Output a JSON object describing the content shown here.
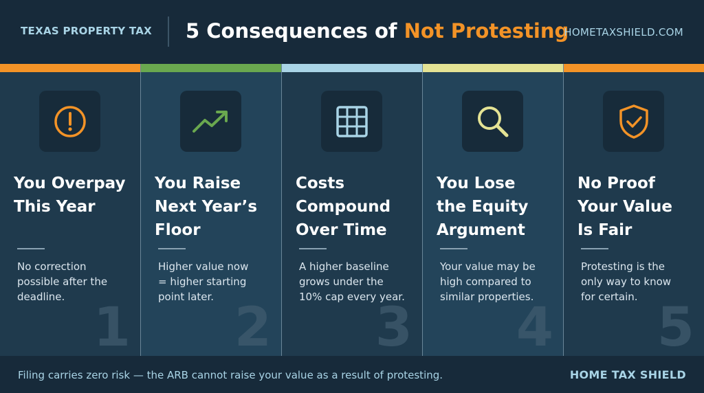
{
  "header": {
    "left_label": "TEXAS PROPERTY TAX",
    "title_main": "5 Consequences of ",
    "title_accent": "Not Protesting",
    "site": "HOMETAXSHIELD.COM"
  },
  "colors": {
    "accent_orange": "#f39327",
    "green": "#6aa84f",
    "light_blue": "#a9d4e6",
    "yellow": "#e4e394",
    "background": "#1b3142"
  },
  "columns": [
    {
      "icon": "exclamation-circle-icon",
      "title_lines": [
        "You Overpay",
        "This Year"
      ],
      "desc_lines": [
        "No correction",
        "possible after the",
        "deadline."
      ],
      "number": "1"
    },
    {
      "icon": "trending-up-icon",
      "title_lines": [
        "You Raise",
        "Next Year’s",
        "Floor"
      ],
      "desc_lines": [
        "Higher value now",
        "= higher starting",
        "point later."
      ],
      "number": "2"
    },
    {
      "icon": "grid-table-icon",
      "title_lines": [
        "Costs",
        "Compound",
        "Over Time"
      ],
      "desc_lines": [
        "A higher baseline",
        "grows under the",
        "10% cap every year."
      ],
      "number": "3"
    },
    {
      "icon": "magnifier-icon",
      "title_lines": [
        "You Lose",
        "the Equity",
        "Argument"
      ],
      "desc_lines": [
        "Your value may be",
        "high compared to",
        "similar properties."
      ],
      "number": "4"
    },
    {
      "icon": "shield-check-icon",
      "title_lines": [
        "No Proof",
        "Your Value",
        "Is Fair"
      ],
      "desc_lines": [
        "Protesting is the",
        "only way to know",
        "for certain."
      ],
      "number": "5"
    }
  ],
  "footer": {
    "note": "Filing carries zero risk — the ARB cannot raise your value as a result of protesting.",
    "brand": "HOME TAX SHIELD"
  }
}
